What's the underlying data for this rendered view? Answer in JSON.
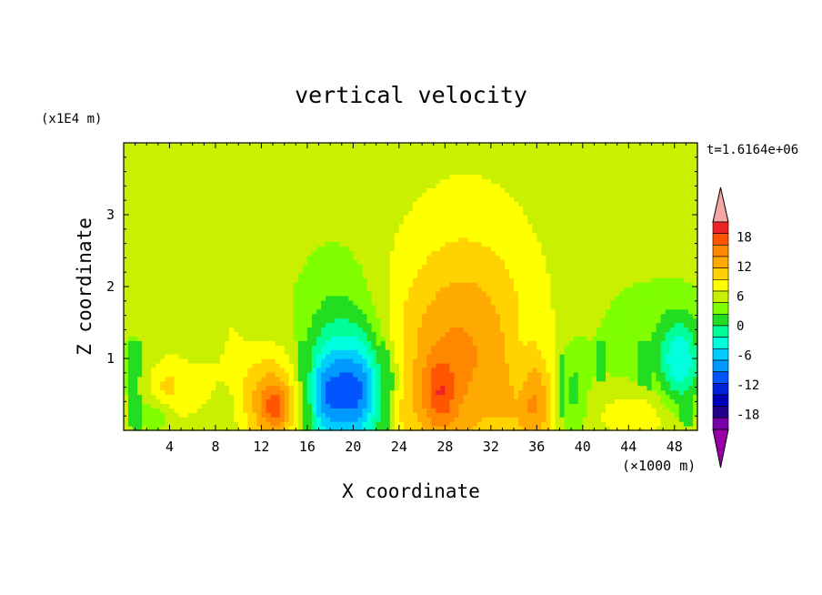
{
  "chart_data": {
    "type": "heatmap",
    "title": "vertical velocity",
    "time_label": "t=1.6164e+06",
    "xlabel": "X coordinate",
    "ylabel": "Z coordinate",
    "x_unit": "(×1000 m)",
    "y_unit": "(x1E4 m)",
    "xlim": [
      0,
      50
    ],
    "ylim": [
      0,
      4
    ],
    "x_ticks": [
      4,
      8,
      12,
      16,
      20,
      24,
      28,
      32,
      36,
      40,
      44,
      48
    ],
    "y_ticks": [
      1,
      2,
      3
    ],
    "colorbar": {
      "labels": [
        18,
        12,
        6,
        0,
        -6,
        -12,
        -18
      ],
      "levels": [
        21,
        18,
        15,
        12,
        9,
        6,
        3,
        0,
        -3,
        -6,
        -9,
        -12,
        -15,
        -18,
        -21
      ],
      "colors": [
        "#f7a6a6",
        "#ee2222",
        "#ff5500",
        "#ff8800",
        "#ffaa00",
        "#ffd200",
        "#ffff00",
        "#c8f000",
        "#7fff00",
        "#22dd22",
        "#00ff99",
        "#00ffdd",
        "#00ccff",
        "#0099ff",
        "#0055ff",
        "#0022dd",
        "#0000bb",
        "#220088",
        "#7a00aa",
        "#9a00aa"
      ]
    },
    "background_value": 1,
    "features": [
      {
        "x": 13.0,
        "z": 0.38,
        "sx": 2.0,
        "sz": 0.5,
        "w": 10
      },
      {
        "x": 13.2,
        "z": 0.35,
        "sx": 0.8,
        "sz": 0.22,
        "w": 6
      },
      {
        "x": 9.5,
        "z": 1.6,
        "sx": 0.8,
        "sz": 0.5,
        "w": 1.5
      },
      {
        "x": 20.5,
        "z": 0.5,
        "sx": 1.6,
        "sz": 0.55,
        "w": -16
      },
      {
        "x": 17.5,
        "z": 0.45,
        "sx": 1.2,
        "sz": 0.5,
        "w": -12
      },
      {
        "x": 19.0,
        "z": 1.0,
        "sx": 2.6,
        "sz": 0.9,
        "w": -7
      },
      {
        "x": 28.5,
        "z": 0.7,
        "sx": 4.5,
        "sz": 1.1,
        "w": 8
      },
      {
        "x": 27.5,
        "z": 0.5,
        "sx": 1.0,
        "sz": 0.35,
        "w": 7
      },
      {
        "x": 30.5,
        "z": 1.5,
        "sx": 4.0,
        "sz": 1.0,
        "w": 3
      },
      {
        "x": 35.5,
        "z": 0.35,
        "sx": 1.5,
        "sz": 0.45,
        "w": 9
      },
      {
        "x": 30.0,
        "z": 2.2,
        "sx": 5.5,
        "sz": 1.6,
        "w": 2
      },
      {
        "x": 39.0,
        "z": 0.5,
        "sx": 1.0,
        "sz": 0.5,
        "w": -6
      },
      {
        "x": 34.5,
        "z": 0.6,
        "sx": 0.7,
        "sz": 0.5,
        "w": -4
      },
      {
        "x": 45.5,
        "z": 1.05,
        "sx": 3.5,
        "sz": 0.7,
        "w": -3
      },
      {
        "x": 48.5,
        "z": 0.95,
        "sx": 1.3,
        "sz": 0.45,
        "w": -11
      },
      {
        "x": 45.0,
        "z": 0.25,
        "sx": 3.0,
        "sz": 0.3,
        "w": 5
      },
      {
        "x": 7.0,
        "z": 0.6,
        "sx": 3.5,
        "sz": 0.45,
        "w": 2.5
      },
      {
        "x": 3.5,
        "z": 0.55,
        "sx": 1.2,
        "sz": 0.3,
        "w": 5
      },
      {
        "x": 3.0,
        "z": 0.25,
        "sx": 1.0,
        "sz": 0.18,
        "w": -5
      },
      {
        "x": 9.0,
        "z": 0.3,
        "sx": 1.0,
        "sz": 0.3,
        "w": -2.5
      },
      {
        "x": 1.0,
        "z": 0.8,
        "sx": 1.5,
        "sz": 0.5,
        "w": -2
      },
      {
        "x": 23.5,
        "z": 0.45,
        "sx": 1.0,
        "sz": 0.4,
        "w": -3
      },
      {
        "x": 24.0,
        "z": 0.3,
        "sx": 0.9,
        "sz": 0.25,
        "w": 4
      }
    ],
    "green_bands": [
      {
        "x0": 0,
        "x1": 18.0,
        "z0": 2.85,
        "z1": 3.35
      },
      {
        "x0": 0,
        "x1": 7.0,
        "z0": 2.55,
        "z1": 2.85
      },
      {
        "x0": 43.5,
        "x1": 50,
        "z0": 3.0,
        "z1": 3.3
      },
      {
        "x0": 23.0,
        "x1": 38.5,
        "z0": 1.8,
        "z1": 2.75
      },
      {
        "x0": 20.0,
        "x1": 40.0,
        "z0": 0.9,
        "z1": 2.15
      },
      {
        "x0": 9.5,
        "x1": 15.0,
        "z0": 1.0,
        "z1": 1.8
      },
      {
        "x0": 2.0,
        "x1": 14.0,
        "z0": 0.7,
        "z1": 1.0
      }
    ]
  }
}
